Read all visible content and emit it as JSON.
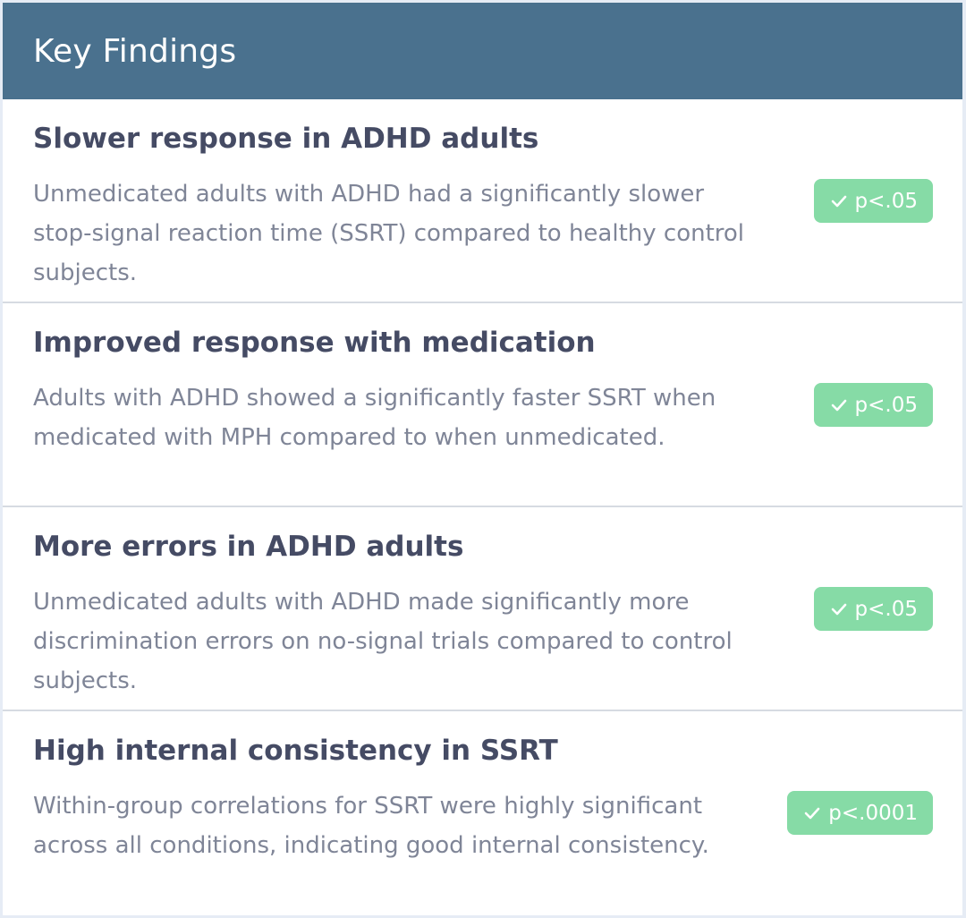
{
  "panel": {
    "title": "Key Findings"
  },
  "findings": [
    {
      "title": "Slower response in ADHD adults",
      "description": "Unmedicated adults with ADHD had a significantly slower stop-signal reaction time (SSRT) compared to healthy control subjects.",
      "badge": "p<.05",
      "badge_icon": "check-icon"
    },
    {
      "title": "Improved response with medication",
      "description": "Adults with ADHD showed a significantly faster SSRT when medicated with MPH compared to when unmedicated.",
      "badge": "p<.05",
      "badge_icon": "check-icon"
    },
    {
      "title": "More errors in ADHD adults",
      "description": "Unmedicated adults with ADHD made significantly more discrimination errors on no-signal trials compared to control subjects.",
      "badge": "p<.05",
      "badge_icon": "check-icon"
    },
    {
      "title": "High internal consistency in SSRT",
      "description": "Within-group correlations for SSRT were highly significant across all conditions, indicating good internal consistency.",
      "badge": "p<.0001",
      "badge_icon": "check-icon"
    }
  ],
  "colors": {
    "header_bg": "#4a718e",
    "title_text": "#454b64",
    "body_text": "#7f8597",
    "badge_bg": "#86dba6"
  }
}
